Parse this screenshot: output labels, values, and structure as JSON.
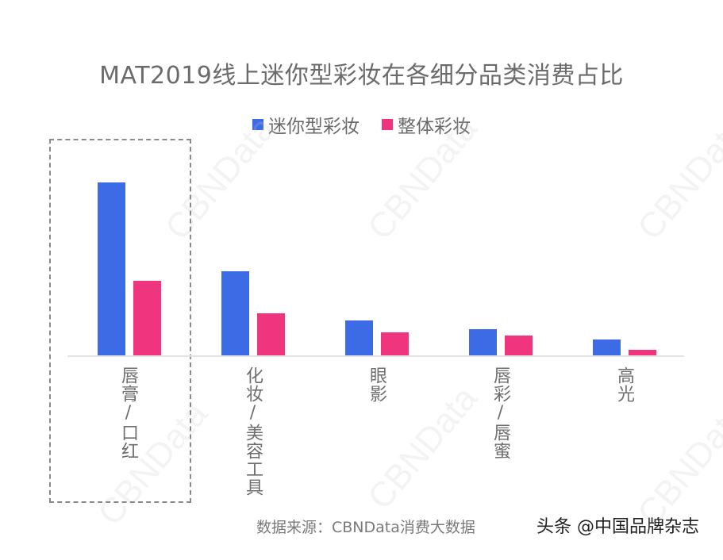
{
  "chart_data": {
    "type": "bar",
    "title": "MAT2019线上迷你型彩妆在各细分品类消费占比",
    "xlabel": "",
    "ylabel": "",
    "categories": [
      "唇膏/口红",
      "化妆/美容工具",
      "眼影",
      "唇彩/唇蜜",
      "高光"
    ],
    "series": [
      {
        "name": "迷你型彩妆",
        "color": "#3d6be6",
        "values": [
          218,
          106,
          44,
          33,
          20
        ]
      },
      {
        "name": "整体彩妆",
        "color": "#f0357f",
        "values": [
          94,
          53,
          29,
          25,
          7
        ]
      }
    ],
    "values_note": "relative bar heights (px), no axis shown",
    "grid": false,
    "legend_position": "top",
    "highlighted_category": "唇膏/口红"
  },
  "legend": [
    {
      "label": "迷你型彩妆",
      "color": "#3d6be6"
    },
    {
      "label": "整体彩妆",
      "color": "#f0357f"
    }
  ],
  "footer": {
    "source": "数据来源：CBNData消费大数据",
    "brand": "头条 @中国品牌杂志"
  },
  "watermark": "CBNData"
}
